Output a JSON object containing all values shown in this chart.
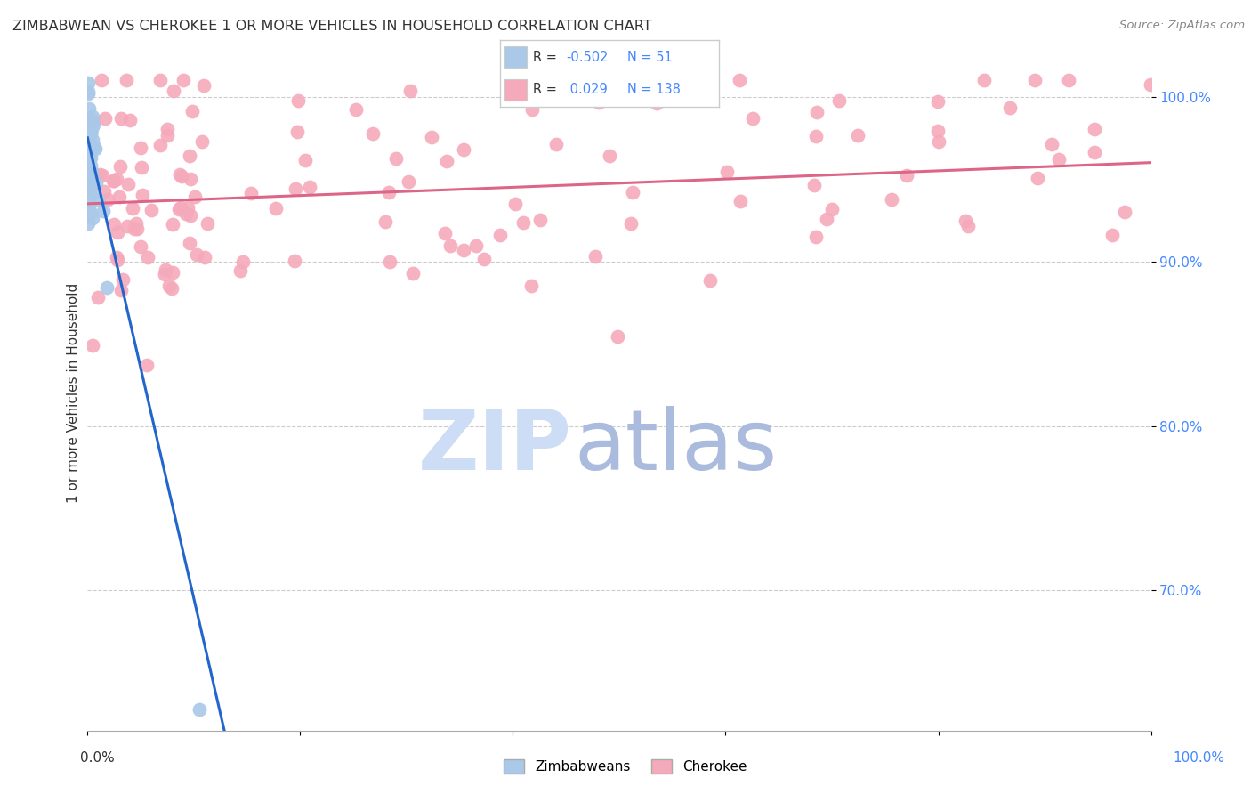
{
  "title": "ZIMBABWEAN VS CHEROKEE 1 OR MORE VEHICLES IN HOUSEHOLD CORRELATION CHART",
  "source": "Source: ZipAtlas.com",
  "ylabel": "1 or more Vehicles in Household",
  "xlim": [
    0.0,
    1.0
  ],
  "ylim": [
    0.615,
    1.025
  ],
  "yticks": [
    0.7,
    0.8,
    0.9,
    1.0
  ],
  "ytick_labels": [
    "70.0%",
    "80.0%",
    "90.0%",
    "100.0%"
  ],
  "xtick_left_label": "0.0%",
  "xtick_right_label": "100.0%",
  "legend_r_zim": "-0.502",
  "legend_n_zim": "51",
  "legend_r_cher": "0.029",
  "legend_n_cher": "138",
  "zim_color": "#aac8e8",
  "cher_color": "#f5aabb",
  "zim_line_color": "#2266cc",
  "cher_line_color": "#dd6688",
  "zim_line_solid_end": 0.165,
  "zim_line_dash_end": 0.28,
  "zim_intercept": 0.975,
  "zim_slope": -2.8,
  "cher_intercept": 0.935,
  "cher_slope": 0.025,
  "grid_color": "#cccccc",
  "grid_style": "--",
  "tick_label_color": "#4488ff",
  "title_color": "#333333",
  "source_color": "#888888",
  "ylabel_color": "#333333",
  "watermark_zip_color": "#ccddf5",
  "watermark_atlas_color": "#aabbdd",
  "legend_box_color": "#eeeeee",
  "legend_border_color": "#cccccc"
}
